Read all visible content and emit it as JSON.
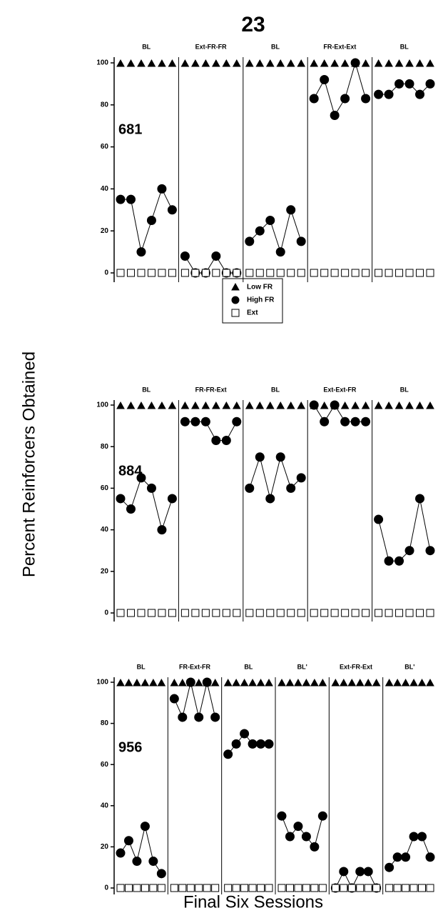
{
  "title": "23",
  "ylabel": "Percent Reinforcers Obtained",
  "xlabel": "Final Six Sessions",
  "chart_data": [
    {
      "type": "line",
      "label": "681",
      "conditions": [
        "BL",
        "Ext-FR-FR",
        "BL",
        "FR-Ext-Ext",
        "BL"
      ],
      "ylim": [
        0,
        100
      ],
      "yticks": [
        0,
        20,
        40,
        60,
        80,
        100
      ],
      "series": [
        {
          "name": "Low FR",
          "color": "#000000",
          "marker": "triangle",
          "filled": true,
          "values": [
            [
              100,
              100,
              100,
              100,
              100,
              100
            ],
            [
              100,
              100,
              100,
              100,
              100,
              100
            ],
            [
              100,
              100,
              100,
              100,
              100,
              100
            ],
            [
              100,
              100,
              100,
              100,
              100,
              100
            ],
            [
              100,
              100,
              100,
              100,
              100,
              100
            ]
          ]
        },
        {
          "name": "High FR",
          "color": "#000000",
          "marker": "circle",
          "filled": true,
          "connected": true,
          "values": [
            [
              35,
              35,
              10,
              25,
              40,
              30
            ],
            [
              8,
              0,
              0,
              8,
              0,
              0
            ],
            [
              15,
              20,
              25,
              10,
              30,
              15
            ],
            [
              83,
              92,
              75,
              83,
              100,
              83
            ],
            [
              85,
              85,
              90,
              90,
              85,
              90
            ]
          ]
        },
        {
          "name": "Ext",
          "color": "#000000",
          "marker": "square",
          "filled": false,
          "values": [
            [
              0,
              0,
              0,
              0,
              0,
              0
            ],
            [
              0,
              0,
              0,
              0,
              0,
              0
            ],
            [
              0,
              0,
              0,
              0,
              0,
              0
            ],
            [
              0,
              0,
              0,
              0,
              0,
              0
            ],
            [
              0,
              0,
              0,
              0,
              0,
              0
            ]
          ]
        }
      ]
    },
    {
      "type": "line",
      "label": "884",
      "conditions": [
        "BL",
        "FR-FR-Ext",
        "BL",
        "Ext-Ext-FR",
        "BL"
      ],
      "ylim": [
        0,
        100
      ],
      "yticks": [
        0,
        20,
        40,
        60,
        80,
        100
      ],
      "series": [
        {
          "color": "#000000",
          "marker": "triangle",
          "filled": true,
          "values": [
            [
              100,
              100,
              100,
              100,
              100,
              100
            ],
            [
              100,
              100,
              100,
              100,
              100,
              100
            ],
            [
              100,
              100,
              100,
              100,
              100,
              100
            ],
            [
              100,
              100,
              100,
              100,
              100,
              100
            ],
            [
              100,
              100,
              100,
              100,
              100,
              100
            ]
          ]
        },
        {
          "color": "#000000",
          "marker": "circle",
          "filled": true,
          "connected": true,
          "values": [
            [
              55,
              50,
              65,
              60,
              40,
              55
            ],
            [
              92,
              92,
              92,
              83,
              83,
              92
            ],
            [
              60,
              75,
              55,
              75,
              60,
              65
            ],
            [
              100,
              92,
              100,
              92,
              92,
              92
            ],
            [
              45,
              25,
              25,
              30,
              55,
              30
            ]
          ]
        },
        {
          "color": "#000000",
          "marker": "square",
          "filled": false,
          "values": [
            [
              0,
              0,
              0,
              0,
              0,
              0
            ],
            [
              0,
              0,
              0,
              0,
              0,
              0
            ],
            [
              0,
              0,
              0,
              0,
              0,
              0
            ],
            [
              0,
              0,
              0,
              0,
              0,
              0
            ],
            [
              0,
              0,
              0,
              0,
              0,
              0
            ]
          ]
        }
      ]
    },
    {
      "type": "line",
      "label": "956",
      "conditions": [
        "BL",
        "FR-Ext-FR",
        "BL",
        "BL'",
        "Ext-FR-Ext",
        "BL'"
      ],
      "ylim": [
        0,
        100
      ],
      "yticks": [
        0,
        20,
        40,
        60,
        80,
        100
      ],
      "series": [
        {
          "color": "#000000",
          "marker": "triangle",
          "filled": true,
          "values": [
            [
              100,
              100,
              100,
              100,
              100,
              100
            ],
            [
              100,
              100,
              100,
              100,
              100,
              100
            ],
            [
              100,
              100,
              100,
              100,
              100,
              100
            ],
            [
              100,
              100,
              100,
              100,
              100,
              100
            ],
            [
              100,
              100,
              100,
              100,
              100,
              100
            ],
            [
              100,
              100,
              100,
              100,
              100,
              100
            ]
          ]
        },
        {
          "color": "#000000",
          "marker": "circle",
          "filled": true,
          "connected": true,
          "values": [
            [
              17,
              23,
              13,
              30,
              13,
              7
            ],
            [
              92,
              83,
              100,
              83,
              100,
              83
            ],
            [
              65,
              70,
              75,
              70,
              70,
              70
            ],
            [
              35,
              25,
              30,
              25,
              20,
              35
            ],
            [
              0,
              8,
              0,
              8,
              8,
              0
            ],
            [
              10,
              15,
              15,
              25,
              25,
              15
            ]
          ]
        },
        {
          "color": "#000000",
          "marker": "square",
          "filled": false,
          "values": [
            [
              0,
              0,
              0,
              0,
              0,
              0
            ],
            [
              0,
              0,
              0,
              0,
              0,
              0
            ],
            [
              0,
              0,
              0,
              0,
              0,
              0
            ],
            [
              0,
              0,
              0,
              0,
              0,
              0
            ],
            [
              0,
              0,
              0,
              0,
              0,
              0
            ],
            [
              0,
              0,
              0,
              0,
              0,
              0
            ]
          ]
        }
      ]
    }
  ]
}
